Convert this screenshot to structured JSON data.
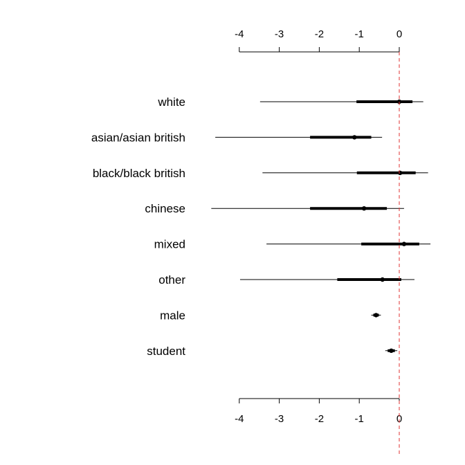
{
  "chart_data": {
    "type": "coefficient_plot",
    "title": "",
    "xlabel": "",
    "ylabel": "",
    "xlim": [
      -4,
      1
    ],
    "axis_ticks": [
      -4,
      -3,
      -2,
      -1,
      0
    ],
    "axis_tick_labels": [
      "-4",
      "-3",
      "-2",
      "-1",
      "0"
    ],
    "axes": [
      "top",
      "bottom"
    ],
    "reference_line": {
      "x": 0,
      "style": "dashed",
      "color": "#e03030"
    },
    "grid": false,
    "colors": {
      "marks": "#000000",
      "reference": "#e03030"
    },
    "terms": [
      {
        "label": "white",
        "estimate": 0.0,
        "inner": [
          -1.07,
          0.33
        ],
        "outer": [
          -3.48,
          0.6
        ]
      },
      {
        "label": "asian/asian british",
        "estimate": -1.12,
        "inner": [
          -2.23,
          -0.7
        ],
        "outer": [
          -4.6,
          -0.43
        ]
      },
      {
        "label": "black/black british",
        "estimate": 0.02,
        "inner": [
          -1.06,
          0.41
        ],
        "outer": [
          -3.42,
          0.72
        ]
      },
      {
        "label": "chinese",
        "estimate": -0.88,
        "inner": [
          -2.23,
          -0.31
        ],
        "outer": [
          -4.7,
          0.12
        ]
      },
      {
        "label": "mixed",
        "estimate": 0.12,
        "inner": [
          -0.95,
          0.5
        ],
        "outer": [
          -3.32,
          0.78
        ]
      },
      {
        "label": "other",
        "estimate": -0.42,
        "inner": [
          -1.55,
          0.05
        ],
        "outer": [
          -3.98,
          0.38
        ]
      },
      {
        "label": "male",
        "estimate": -0.58,
        "inner": [
          -0.65,
          -0.51
        ],
        "outer": [
          -0.7,
          -0.46
        ]
      },
      {
        "label": "student",
        "estimate": -0.2,
        "inner": [
          -0.29,
          -0.11
        ],
        "outer": [
          -0.35,
          -0.05
        ]
      }
    ]
  }
}
